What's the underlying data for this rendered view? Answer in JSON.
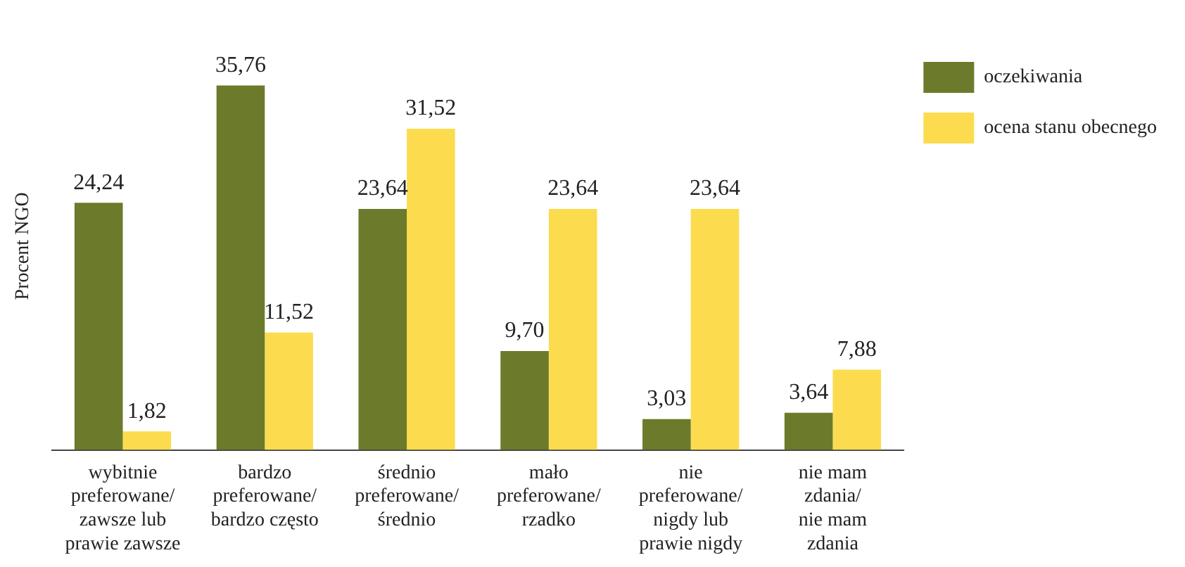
{
  "chart_data": {
    "type": "bar",
    "ylabel": "Procent NGO",
    "categories": [
      "wybitnie\npreferowane/\nzawsze lub\nprawie zawsze",
      "bardzo\npreferowane/\nbardzo często",
      "średnio\npreferowane/\nśrednio",
      "mało\npreferowane/\nrzadko",
      "nie\npreferowane/\nnigdy lub\nprawie nigdy",
      "nie mam\nzdania/\nnie mam\nzdania"
    ],
    "series": [
      {
        "name": "oczekiwania",
        "color": "#6b7b2b",
        "values": [
          24.24,
          35.76,
          23.64,
          9.7,
          3.03,
          3.64
        ],
        "value_labels": [
          "24,24",
          "35,76",
          "23,64",
          "9,70",
          "3,03",
          "3,64"
        ]
      },
      {
        "name": "ocena stanu obecnego",
        "color": "#fcdc4e",
        "values": [
          1.82,
          11.52,
          31.52,
          23.64,
          23.64,
          7.88
        ],
        "value_labels": [
          "1,82",
          "11,52",
          "31,52",
          "23,64",
          "23,64",
          "7,88"
        ]
      }
    ],
    "tick_labels": "x",
    "grid": false,
    "legend": "top right"
  }
}
